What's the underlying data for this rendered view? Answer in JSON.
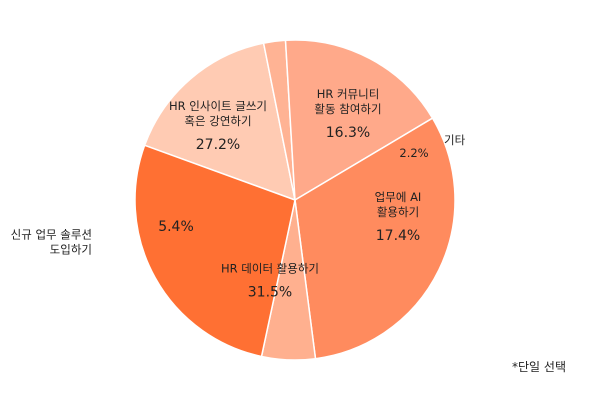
{
  "chart_data": {
    "type": "pie",
    "note": "*단일 선택",
    "slices": [
      {
        "label": [
          "HR 커뮤니티",
          "활동 참여하기"
        ],
        "value": 16.3,
        "value_text": "16.3%",
        "color": "#FFCBB3",
        "label_position": "inside"
      },
      {
        "label": [
          "기타"
        ],
        "value": 2.2,
        "value_text": "2.2%",
        "color": "#FFB394",
        "label_position": "outside"
      },
      {
        "label": [
          "업무에 AI",
          "활용하기"
        ],
        "value": 17.4,
        "value_text": "17.4%",
        "color": "#FFA98A",
        "label_position": "inside"
      },
      {
        "label": [
          "HR 데이터 활용하기"
        ],
        "value": 31.5,
        "value_text": "31.5%",
        "color": "#FF8B5E",
        "label_position": "inside"
      },
      {
        "label": [
          "신규 업무 솔루션",
          "도입하기"
        ],
        "value": 5.4,
        "value_text": "5.4%",
        "color": "#FFB08F",
        "label_position": "outside"
      },
      {
        "label": [
          "HR 인사이트 글쓰기",
          "혹은 강연하기"
        ],
        "value": 27.2,
        "value_text": "27.2%",
        "color": "#FF7033",
        "label_position": "inside"
      }
    ]
  }
}
